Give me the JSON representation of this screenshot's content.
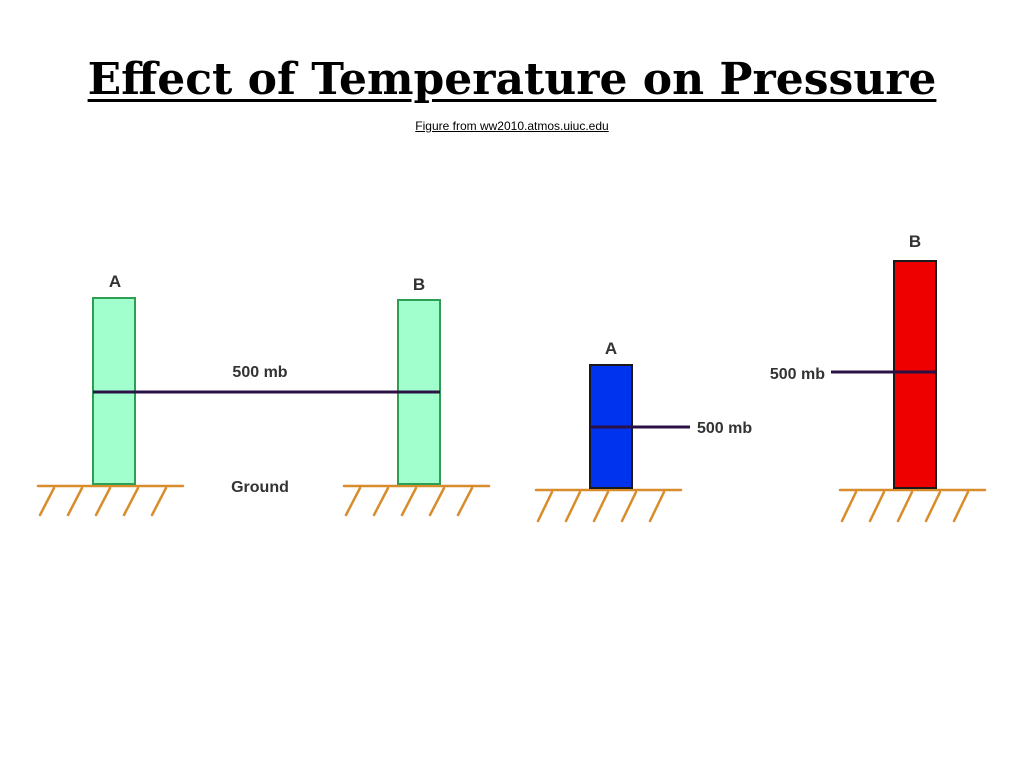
{
  "title": "Effect of Temperature on Pressure",
  "subtitle": "Figure from ww2010.atmos.uiuc.edu",
  "colors": {
    "equal_column": "#a0ffcc",
    "equal_column_border": "#2e9e55",
    "cold_column": "#0033ee",
    "warm_column": "#ee0000",
    "column_border": "#1a1a1a",
    "pressure_line": "#2a1045",
    "ground": "#d98c2b"
  },
  "panels": {
    "equal": {
      "column_a_label": "A",
      "column_b_label": "B",
      "pressure_label": "500 mb",
      "ground_label": "Ground"
    },
    "cold": {
      "column_label": "A",
      "pressure_label": "500 mb"
    },
    "warm": {
      "column_label": "B",
      "pressure_label": "500 mb"
    }
  }
}
